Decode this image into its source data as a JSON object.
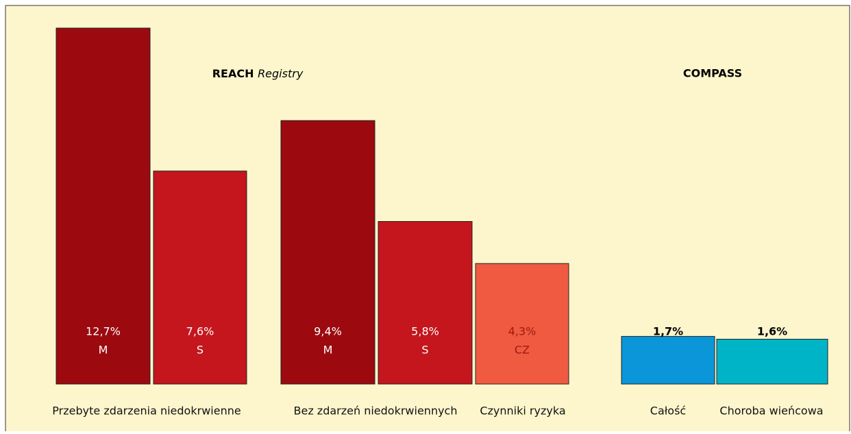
{
  "chart_data": {
    "type": "bar",
    "sections": [
      {
        "title": "REACH",
        "title_em": "Registry"
      },
      {
        "title": "COMPASS"
      }
    ],
    "values": [
      12.7,
      7.6,
      9.4,
      5.8,
      4.3,
      1.7,
      1.6
    ],
    "value_labels": [
      "12,7%",
      "7,6%",
      "9,4%",
      "5,8%",
      "4,3%",
      "1,7%",
      "1,6%"
    ],
    "bar_labels": [
      "M",
      "S",
      "M",
      "S",
      "CZ",
      null,
      null
    ],
    "colors": [
      "#9c0a10",
      "#c4161c",
      "#9c0a10",
      "#c4161c",
      "#f05a40",
      "#0a96d8",
      "#00b4c8"
    ],
    "label_colors": [
      "#ffffff",
      "#ffffff",
      "#ffffff",
      "#ffffff",
      "#9c1a10",
      "#000000",
      "#000000"
    ],
    "groups": [
      "Przebyte zdarzenia niedokrwienne",
      "Bez zdarzeń niedokrwiennych",
      "Czynniki ryzyka",
      "Całość",
      "Choroba wieńcowa"
    ]
  }
}
